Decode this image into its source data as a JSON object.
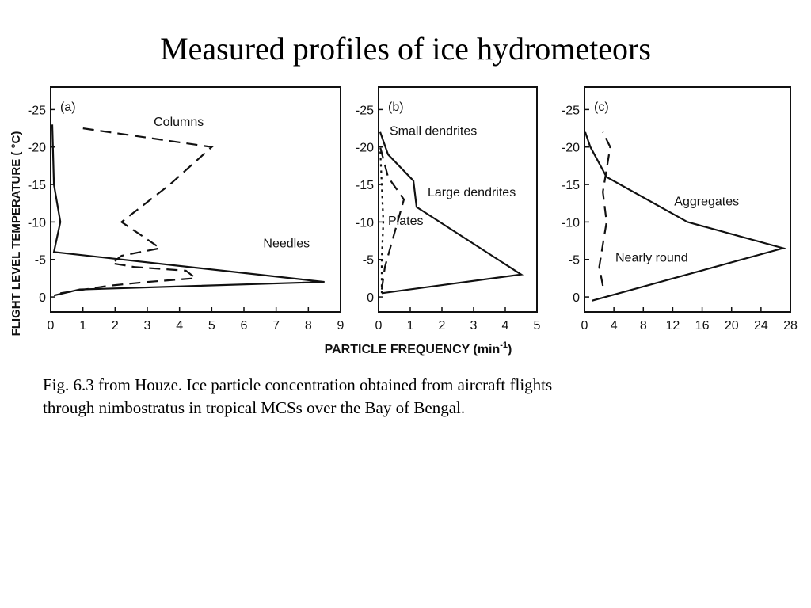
{
  "title": "Measured profiles of ice hydrometeors",
  "caption": {
    "line1": "Fig. 6.3 from Houze.  Ice particle concentration obtained from aircraft flights",
    "line2": "through nimbostratus in tropical MCSs over the Bay of Bengal."
  },
  "figure": {
    "ylabel": "FLIGHT LEVEL TEMPERATURE ( °C)",
    "xlabel_main": "PARTICLE FREQUENCY (min",
    "xlabel_sup": "-1",
    "xlabel_close": ")"
  },
  "chart_data": [
    {
      "type": "line",
      "panel_label": "(a)",
      "xlim": [
        0,
        9
      ],
      "xticks": [
        0,
        1,
        2,
        3,
        4,
        5,
        6,
        7,
        8,
        9
      ],
      "ylim": [
        2,
        -28
      ],
      "yticks": [
        0,
        -5,
        -10,
        -15,
        -20,
        -25
      ],
      "ytick_labels": [
        "0",
        "-5",
        "-10",
        "-15",
        "-20",
        "-25"
      ],
      "series": [
        {
          "name": "Columns",
          "style": "dashed",
          "points": [
            [
              0.3,
              -0.5
            ],
            [
              1.8,
              -1.5
            ],
            [
              3.0,
              -2.0
            ],
            [
              4.5,
              -2.5
            ],
            [
              4.2,
              -3.5
            ],
            [
              2.6,
              -4.0
            ],
            [
              1.9,
              -4.5
            ],
            [
              2.2,
              -5.5
            ],
            [
              3.4,
              -6.5
            ],
            [
              2.2,
              -10.0
            ],
            [
              3.7,
              -15.0
            ],
            [
              5.0,
              -20.0
            ],
            [
              1.0,
              -22.5
            ]
          ]
        },
        {
          "name": "Needles",
          "style": "solid",
          "points": [
            [
              0.1,
              -0.2
            ],
            [
              0.9,
              -1.0
            ],
            [
              8.5,
              -2.0
            ],
            [
              0.1,
              -6.0
            ],
            [
              0.3,
              -10.0
            ],
            [
              0.1,
              -15.0
            ],
            [
              0.05,
              -23.0
            ]
          ]
        }
      ]
    },
    {
      "type": "line",
      "panel_label": "(b)",
      "xlim": [
        0,
        5
      ],
      "xticks": [
        0,
        1,
        2,
        3,
        4,
        5
      ],
      "ylim": [
        2,
        -28
      ],
      "yticks": [
        0,
        -5,
        -10,
        -15,
        -20,
        -25
      ],
      "ytick_labels": [
        "0",
        "-5",
        "-10",
        "-15",
        "-20",
        "-25"
      ],
      "series": [
        {
          "name": "Small dendrites",
          "style": "solid",
          "points": [
            [
              0.1,
              -0.5
            ],
            [
              4.5,
              -3.0
            ],
            [
              1.2,
              -12.0
            ],
            [
              1.1,
              -15.5
            ],
            [
              0.3,
              -19.0
            ],
            [
              0.05,
              -22.0
            ]
          ]
        },
        {
          "name": "Large dendrites",
          "style": "dashed",
          "points": [
            [
              0.1,
              -1.0
            ],
            [
              0.2,
              -4.0
            ],
            [
              0.4,
              -7.0
            ],
            [
              0.6,
              -10.0
            ],
            [
              0.8,
              -13.0
            ],
            [
              0.3,
              -16.0
            ],
            [
              0.05,
              -20.0
            ]
          ]
        },
        {
          "name": "Plates",
          "style": "dotted",
          "points": [
            [
              0.1,
              -0.5
            ],
            [
              0.1,
              -5.0
            ],
            [
              0.15,
              -10.0
            ],
            [
              0.1,
              -15.0
            ],
            [
              0.05,
              -20.0
            ]
          ]
        }
      ]
    },
    {
      "type": "line",
      "panel_label": "(c)",
      "xlim": [
        0,
        28
      ],
      "xticks": [
        0,
        4,
        8,
        12,
        16,
        20,
        24,
        28
      ],
      "ylim": [
        2,
        -28
      ],
      "yticks": [
        0,
        -5,
        -10,
        -15,
        -20,
        -25
      ],
      "ytick_labels": [
        "0",
        "-5",
        "-10",
        "-15",
        "-20",
        "-25"
      ],
      "series": [
        {
          "name": "Aggregates",
          "style": "solid",
          "points": [
            [
              1.0,
              0.5
            ],
            [
              27.0,
              -6.5
            ],
            [
              14.0,
              -10.0
            ],
            [
              3.0,
              -16.0
            ],
            [
              0.8,
              -20.0
            ],
            [
              0.1,
              -22.0
            ]
          ]
        },
        {
          "name": "Nearly round",
          "style": "dashed",
          "points": [
            [
              2.5,
              -1.5
            ],
            [
              2.0,
              -4.0
            ],
            [
              2.5,
              -7.0
            ],
            [
              3.0,
              -10.0
            ],
            [
              2.5,
              -14.0
            ],
            [
              3.0,
              -17.0
            ],
            [
              3.5,
              -20.0
            ],
            [
              2.5,
              -22.0
            ]
          ]
        }
      ]
    }
  ]
}
